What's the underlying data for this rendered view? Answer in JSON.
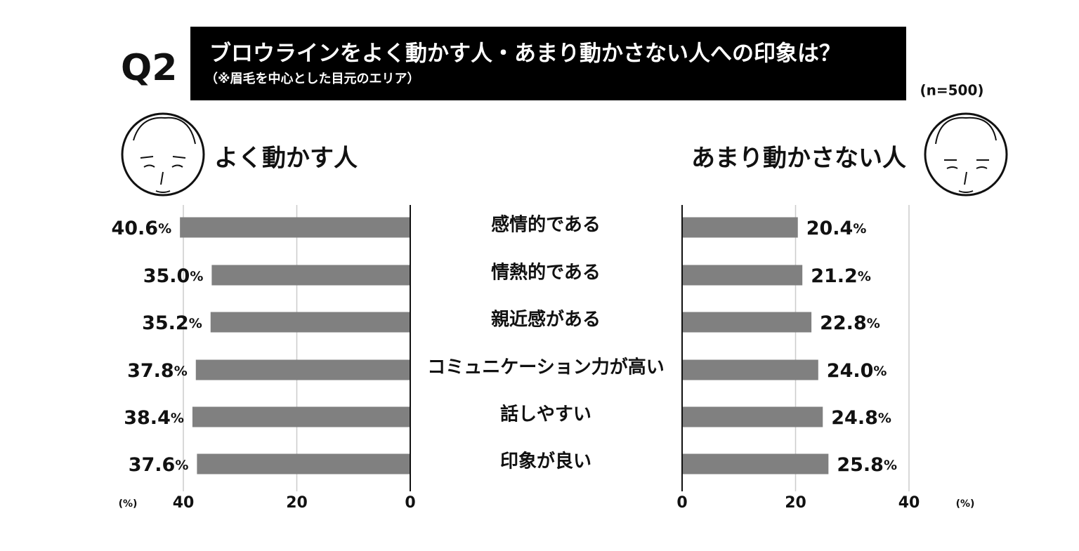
{
  "chart_data": {
    "type": "butterfly",
    "label": "Q2",
    "title": "ブロウラインをよく動かす人・あまり動かさない人への印象は？",
    "subtitle": "（※眉毛を中心とした目元のエリア）",
    "sample_size": "(n=500)",
    "axis_unit": "(%)",
    "categories": [
      "感情的である",
      "情熱的である",
      "親近感がある",
      "コミュニケーション力が高い",
      "話しやすい",
      "印象が良い"
    ],
    "series": [
      {
        "name": "よく動かす人",
        "color": "#808080",
        "values": [
          40.6,
          35.0,
          35.2,
          37.8,
          38.4,
          37.6
        ],
        "value_labels": [
          "40.6%",
          "35.0%",
          "35.2%",
          "37.8%",
          "38.4%",
          "37.6%"
        ]
      },
      {
        "name": "あまり動かさない人",
        "color": "#808080",
        "values": [
          20.4,
          21.2,
          22.8,
          24.0,
          24.8,
          25.8
        ],
        "value_labels": [
          "20.4%",
          "21.2%",
          "22.8%",
          "24.0%",
          "24.8%",
          "25.8%"
        ]
      }
    ],
    "xlim": [
      0,
      40
    ],
    "xticks": [
      0,
      20,
      40
    ],
    "grid": true
  }
}
